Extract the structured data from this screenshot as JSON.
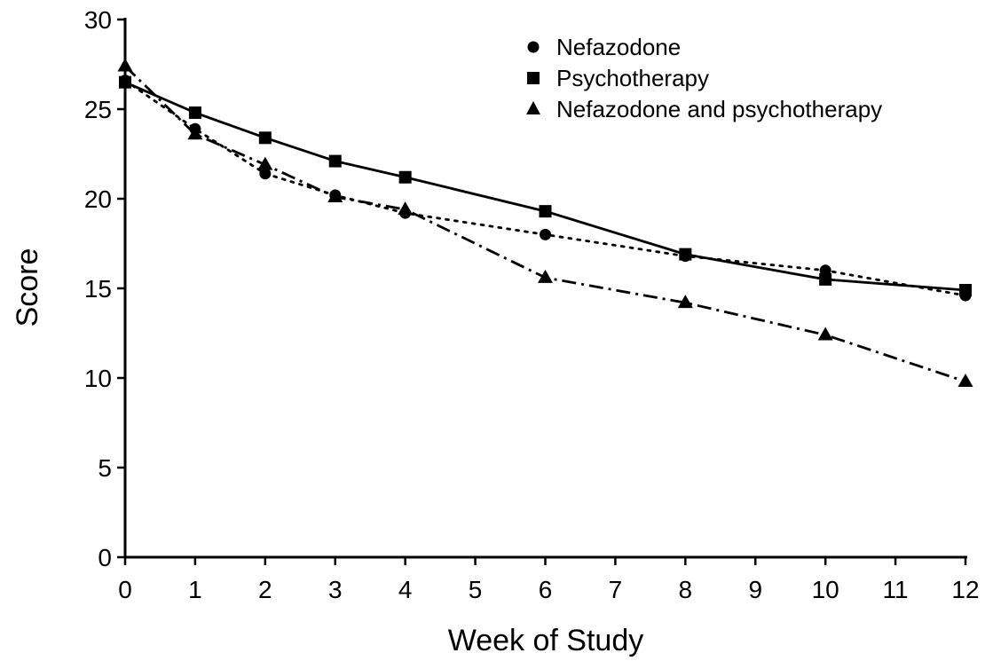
{
  "chart_data": {
    "type": "line",
    "title": "",
    "xlabel": "Week of Study",
    "ylabel": "Score",
    "xlim": [
      0,
      12
    ],
    "ylim": [
      0,
      30
    ],
    "xticks": [
      0,
      1,
      2,
      3,
      4,
      5,
      6,
      7,
      8,
      9,
      10,
      11,
      12
    ],
    "yticks": [
      0,
      5,
      10,
      15,
      20,
      25,
      30
    ],
    "grid": false,
    "legend_position": "top-right",
    "series": [
      {
        "name": "Nefazodone",
        "marker": "circle",
        "line_style": "dotted",
        "x": [
          0,
          1,
          2,
          3,
          4,
          6,
          8,
          10,
          12
        ],
        "y": [
          26.6,
          23.9,
          21.4,
          20.2,
          19.2,
          18.0,
          16.8,
          16.0,
          14.6
        ]
      },
      {
        "name": "Psychotherapy",
        "marker": "square",
        "line_style": "solid",
        "x": [
          0,
          1,
          2,
          3,
          4,
          6,
          8,
          10,
          12
        ],
        "y": [
          26.5,
          24.8,
          23.4,
          22.1,
          21.2,
          19.3,
          16.9,
          15.5,
          14.9
        ]
      },
      {
        "name": "Nefazodone and psychotherapy",
        "marker": "triangle",
        "line_style": "dash-dot",
        "x": [
          0,
          1,
          2,
          3,
          4,
          6,
          8,
          10,
          12
        ],
        "y": [
          27.4,
          23.6,
          21.9,
          20.1,
          19.4,
          15.6,
          14.2,
          12.4,
          9.8
        ]
      }
    ]
  }
}
